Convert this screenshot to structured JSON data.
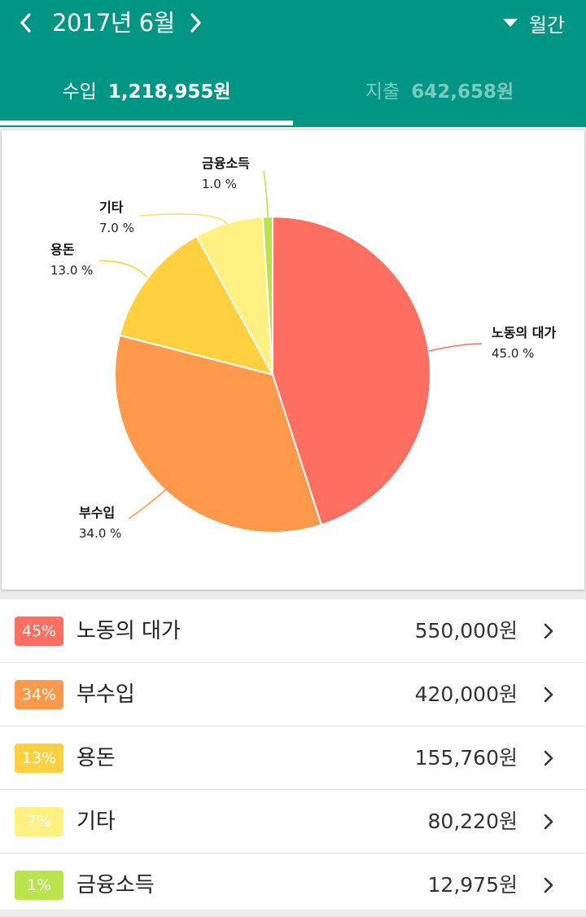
{
  "header": {
    "month": "2017년 6월",
    "period": "월간",
    "colors": {
      "bar": "#009683"
    }
  },
  "tabs": [
    {
      "label": "수입",
      "amount": "1,218,955원",
      "active": true
    },
    {
      "label": "지출",
      "amount": "642,658원",
      "active": false
    }
  ],
  "chart_data": {
    "type": "pie",
    "slices": [
      {
        "name": "노동의 대가",
        "value": 45.0,
        "label": "45.0 %",
        "color": "#ff6f61"
      },
      {
        "name": "부수입",
        "value": 34.0,
        "label": "34.0 %",
        "color": "#ff9a4d"
      },
      {
        "name": "용돈",
        "value": 13.0,
        "label": "13.0 %",
        "color": "#ffd03f"
      },
      {
        "name": "기타",
        "value": 7.0,
        "label": "7.0 %",
        "color": "#fff082"
      },
      {
        "name": "금융소득",
        "value": 1.0,
        "label": "1.0 %",
        "color": "#b9e44c"
      }
    ]
  },
  "list": [
    {
      "pct": "45%",
      "name": "노동의 대가",
      "value": "550,000원",
      "color": "#ff6f61"
    },
    {
      "pct": "34%",
      "name": "부수입",
      "value": "420,000원",
      "color": "#ff9a4d"
    },
    {
      "pct": "13%",
      "name": "용돈",
      "value": "155,760원",
      "color": "#ffd03f"
    },
    {
      "pct": "7%",
      "name": "기타",
      "value": "80,220원",
      "color": "#fff082"
    },
    {
      "pct": "1%",
      "name": "금융소득",
      "value": "12,975원",
      "color": "#b9e44c"
    }
  ]
}
